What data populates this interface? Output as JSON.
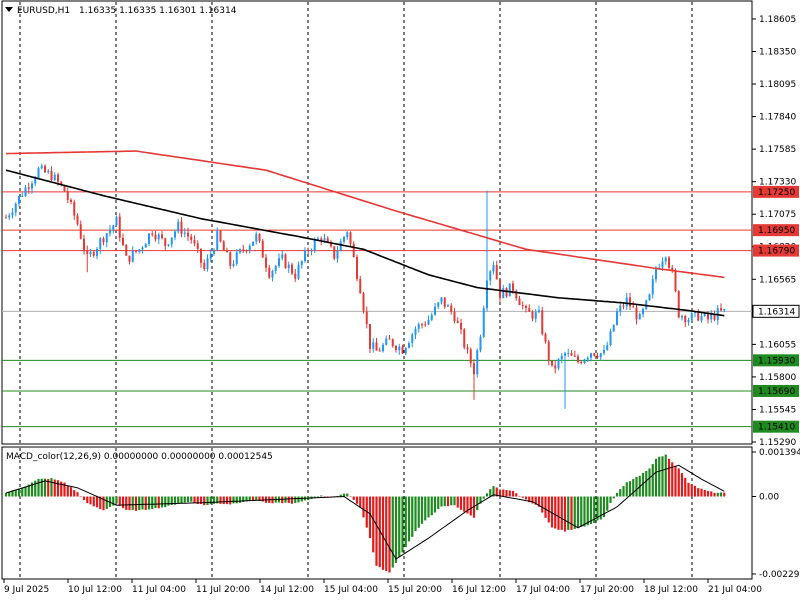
{
  "header": {
    "symbol_label": "EURUSD,H1",
    "ohlc": "1.16335 1.16335 1.16301 1.16314"
  },
  "indicator_header": "MACD_color(12,26,9) 0.00000000 0.00000000 0.00012545",
  "colors": {
    "bull": "#2196F3",
    "bear": "#E53935",
    "ma_slow": "#E53935",
    "ma_fast": "#000000",
    "macd_pos": "#1F8A1F",
    "macd_neg": "#E01B1B",
    "resistance": "#E53935",
    "support": "#1F8A1F",
    "current_price_bg": "#FFFFFF"
  },
  "chart_data": [
    {
      "type": "candlestick",
      "symbol": "EURUSD",
      "timeframe": "H1",
      "ylim": [
        1.1529,
        1.1873
      ],
      "y_ticks": [
        "1.18605",
        "1.18350",
        "1.18095",
        "1.17840",
        "1.17585",
        "1.17330",
        "1.17075",
        "1.16820",
        "1.16565",
        "1.16310",
        "1.16055",
        "1.15800",
        "1.15545",
        "1.15290"
      ],
      "x_tick_labels": [
        "9 Jul 2025",
        "10 Jul 12:00",
        "11 Jul 04:00",
        "11 Jul 20:00",
        "14 Jul 12:00",
        "15 Jul 04:00",
        "15 Jul 20:00",
        "16 Jul 12:00",
        "17 Jul 04:00",
        "17 Jul 20:00",
        "18 Jul 12:00",
        "21 Jul 04:00"
      ],
      "current_price": "1.16314",
      "horizontal_levels": [
        {
          "value": "1.17250",
          "kind": "resistance"
        },
        {
          "value": "1.16950",
          "kind": "resistance"
        },
        {
          "value": "1.16790",
          "kind": "resistance"
        },
        {
          "value": "1.15930",
          "kind": "support"
        },
        {
          "value": "1.15690",
          "kind": "support"
        },
        {
          "value": "1.15410",
          "kind": "support"
        }
      ],
      "close_path": [
        [
          0,
          1.1705
        ],
        [
          6,
          1.1728
        ],
        [
          10,
          1.1742
        ],
        [
          14,
          1.1738
        ],
        [
          18,
          1.1726
        ],
        [
          22,
          1.17
        ],
        [
          25,
          1.1672
        ],
        [
          30,
          1.169
        ],
        [
          34,
          1.1702
        ],
        [
          37,
          1.1672
        ],
        [
          41,
          1.168
        ],
        [
          45,
          1.1695
        ],
        [
          49,
          1.1684
        ],
        [
          53,
          1.1698
        ],
        [
          57,
          1.1688
        ],
        [
          61,
          1.1664
        ],
        [
          65,
          1.169
        ],
        [
          69,
          1.1668
        ],
        [
          73,
          1.168
        ],
        [
          77,
          1.169
        ],
        [
          81,
          1.1662
        ],
        [
          85,
          1.1672
        ],
        [
          89,
          1.166
        ],
        [
          93,
          1.168
        ],
        [
          97,
          1.169
        ],
        [
          101,
          1.1675
        ],
        [
          105,
          1.1695
        ],
        [
          109,
          1.165
        ],
        [
          112,
          1.1605
        ],
        [
          114,
          1.16
        ],
        [
          118,
          1.1608
        ],
        [
          122,
          1.1602
        ],
        [
          126,
          1.1618
        ],
        [
          130,
          1.1625
        ],
        [
          134,
          1.164
        ],
        [
          138,
          1.1628
        ],
        [
          142,
          1.1598
        ],
        [
          144,
          1.1585
        ],
        [
          146,
          1.1615
        ],
        [
          148,
          1.166
        ],
        [
          150,
          1.167
        ],
        [
          152,
          1.1645
        ],
        [
          156,
          1.165
        ],
        [
          160,
          1.163
        ],
        [
          164,
          1.1628
        ],
        [
          166,
          1.1605
        ],
        [
          168,
          1.1585
        ],
        [
          172,
          1.1598
        ],
        [
          176,
          1.1592
        ],
        [
          180,
          1.16
        ],
        [
          184,
          1.1598
        ],
        [
          186,
          1.1612
        ],
        [
          188,
          1.163
        ],
        [
          191,
          1.164
        ],
        [
          195,
          1.1625
        ],
        [
          198,
          1.1642
        ],
        [
          200,
          1.1665
        ],
        [
          203,
          1.1678
        ],
        [
          205,
          1.166
        ],
        [
          207,
          1.163
        ],
        [
          210,
          1.1626
        ],
        [
          213,
          1.1628
        ],
        [
          216,
          1.1625
        ],
        [
          219,
          1.163
        ],
        [
          221,
          1.1631
        ]
      ],
      "ma_slow": [
        [
          0,
          1.1755
        ],
        [
          40,
          1.1757
        ],
        [
          80,
          1.1742
        ],
        [
          120,
          1.171
        ],
        [
          160,
          1.168
        ],
        [
          200,
          1.1665
        ],
        [
          221,
          1.1658
        ]
      ],
      "ma_fast": [
        [
          0,
          1.1742
        ],
        [
          30,
          1.1722
        ],
        [
          60,
          1.1704
        ],
        [
          90,
          1.169
        ],
        [
          110,
          1.168
        ],
        [
          130,
          1.166
        ],
        [
          145,
          1.165
        ],
        [
          170,
          1.1642
        ],
        [
          190,
          1.1638
        ],
        [
          210,
          1.1632
        ],
        [
          221,
          1.1628
        ]
      ]
    },
    {
      "type": "histogram",
      "name": "MACD_color(12,26,9)",
      "ylim": [
        -0.00229,
        0.00134
      ],
      "y_ticks": [
        "0.001394",
        "0.00",
        "-0.002290"
      ],
      "bars": [
        [
          0,
          0.0001
        ],
        [
          6,
          0.0003
        ],
        [
          10,
          0.0005
        ],
        [
          14,
          0.00052
        ],
        [
          18,
          0.0004
        ],
        [
          22,
          0.00012
        ],
        [
          25,
          -0.0002
        ],
        [
          30,
          -0.0004
        ],
        [
          34,
          -0.0002
        ],
        [
          37,
          -0.0004
        ],
        [
          41,
          -0.0004
        ],
        [
          45,
          -0.00035
        ],
        [
          49,
          -0.0003
        ],
        [
          53,
          -0.0002
        ],
        [
          57,
          -0.00015
        ],
        [
          61,
          -0.00025
        ],
        [
          65,
          -0.0002
        ],
        [
          69,
          -0.00022
        ],
        [
          73,
          -0.00015
        ],
        [
          77,
          -0.0001
        ],
        [
          81,
          -0.0002
        ],
        [
          85,
          -0.00018
        ],
        [
          89,
          -0.0002
        ],
        [
          93,
          -0.0001
        ],
        [
          97,
          2e-05
        ],
        [
          101,
          -2e-05
        ],
        [
          105,
          0.0001
        ],
        [
          109,
          -0.0003
        ],
        [
          112,
          -0.0012
        ],
        [
          114,
          -0.002
        ],
        [
          118,
          -0.0022
        ],
        [
          122,
          -0.0016
        ],
        [
          126,
          -0.001
        ],
        [
          130,
          -0.0006
        ],
        [
          134,
          -0.0003
        ],
        [
          138,
          -0.00025
        ],
        [
          142,
          -0.0005
        ],
        [
          144,
          -0.0006
        ],
        [
          146,
          -0.0002
        ],
        [
          148,
          0.0001
        ],
        [
          150,
          0.0003
        ],
        [
          152,
          0.0002
        ],
        [
          156,
          0.00015
        ],
        [
          160,
          -0.0001
        ],
        [
          164,
          -0.0003
        ],
        [
          166,
          -0.0006
        ],
        [
          168,
          -0.0009
        ],
        [
          172,
          -0.001
        ],
        [
          176,
          -0.0009
        ],
        [
          180,
          -0.0008
        ],
        [
          184,
          -0.0006
        ],
        [
          186,
          -0.0002
        ],
        [
          188,
          0.0001
        ],
        [
          191,
          0.0004
        ],
        [
          195,
          0.0006
        ],
        [
          198,
          0.0008
        ],
        [
          200,
          0.0011
        ],
        [
          203,
          0.0012
        ],
        [
          205,
          0.001
        ],
        [
          207,
          0.0008
        ],
        [
          210,
          0.0004
        ],
        [
          213,
          0.00025
        ],
        [
          216,
          0.00015
        ],
        [
          219,
          0.0001
        ],
        [
          221,
          0.00012
        ]
      ],
      "signal": [
        [
          0,
          0.0001
        ],
        [
          12,
          0.00045
        ],
        [
          22,
          0.00025
        ],
        [
          34,
          -0.00025
        ],
        [
          60,
          -0.00018
        ],
        [
          104,
          0.0
        ],
        [
          112,
          -0.0005
        ],
        [
          120,
          -0.0018
        ],
        [
          130,
          -0.0012
        ],
        [
          142,
          -0.0004
        ],
        [
          150,
          5e-05
        ],
        [
          162,
          -0.00015
        ],
        [
          176,
          -0.0009
        ],
        [
          188,
          -0.0003
        ],
        [
          200,
          0.0007
        ],
        [
          207,
          0.0009
        ],
        [
          214,
          0.0005
        ],
        [
          221,
          0.00015
        ]
      ]
    }
  ]
}
